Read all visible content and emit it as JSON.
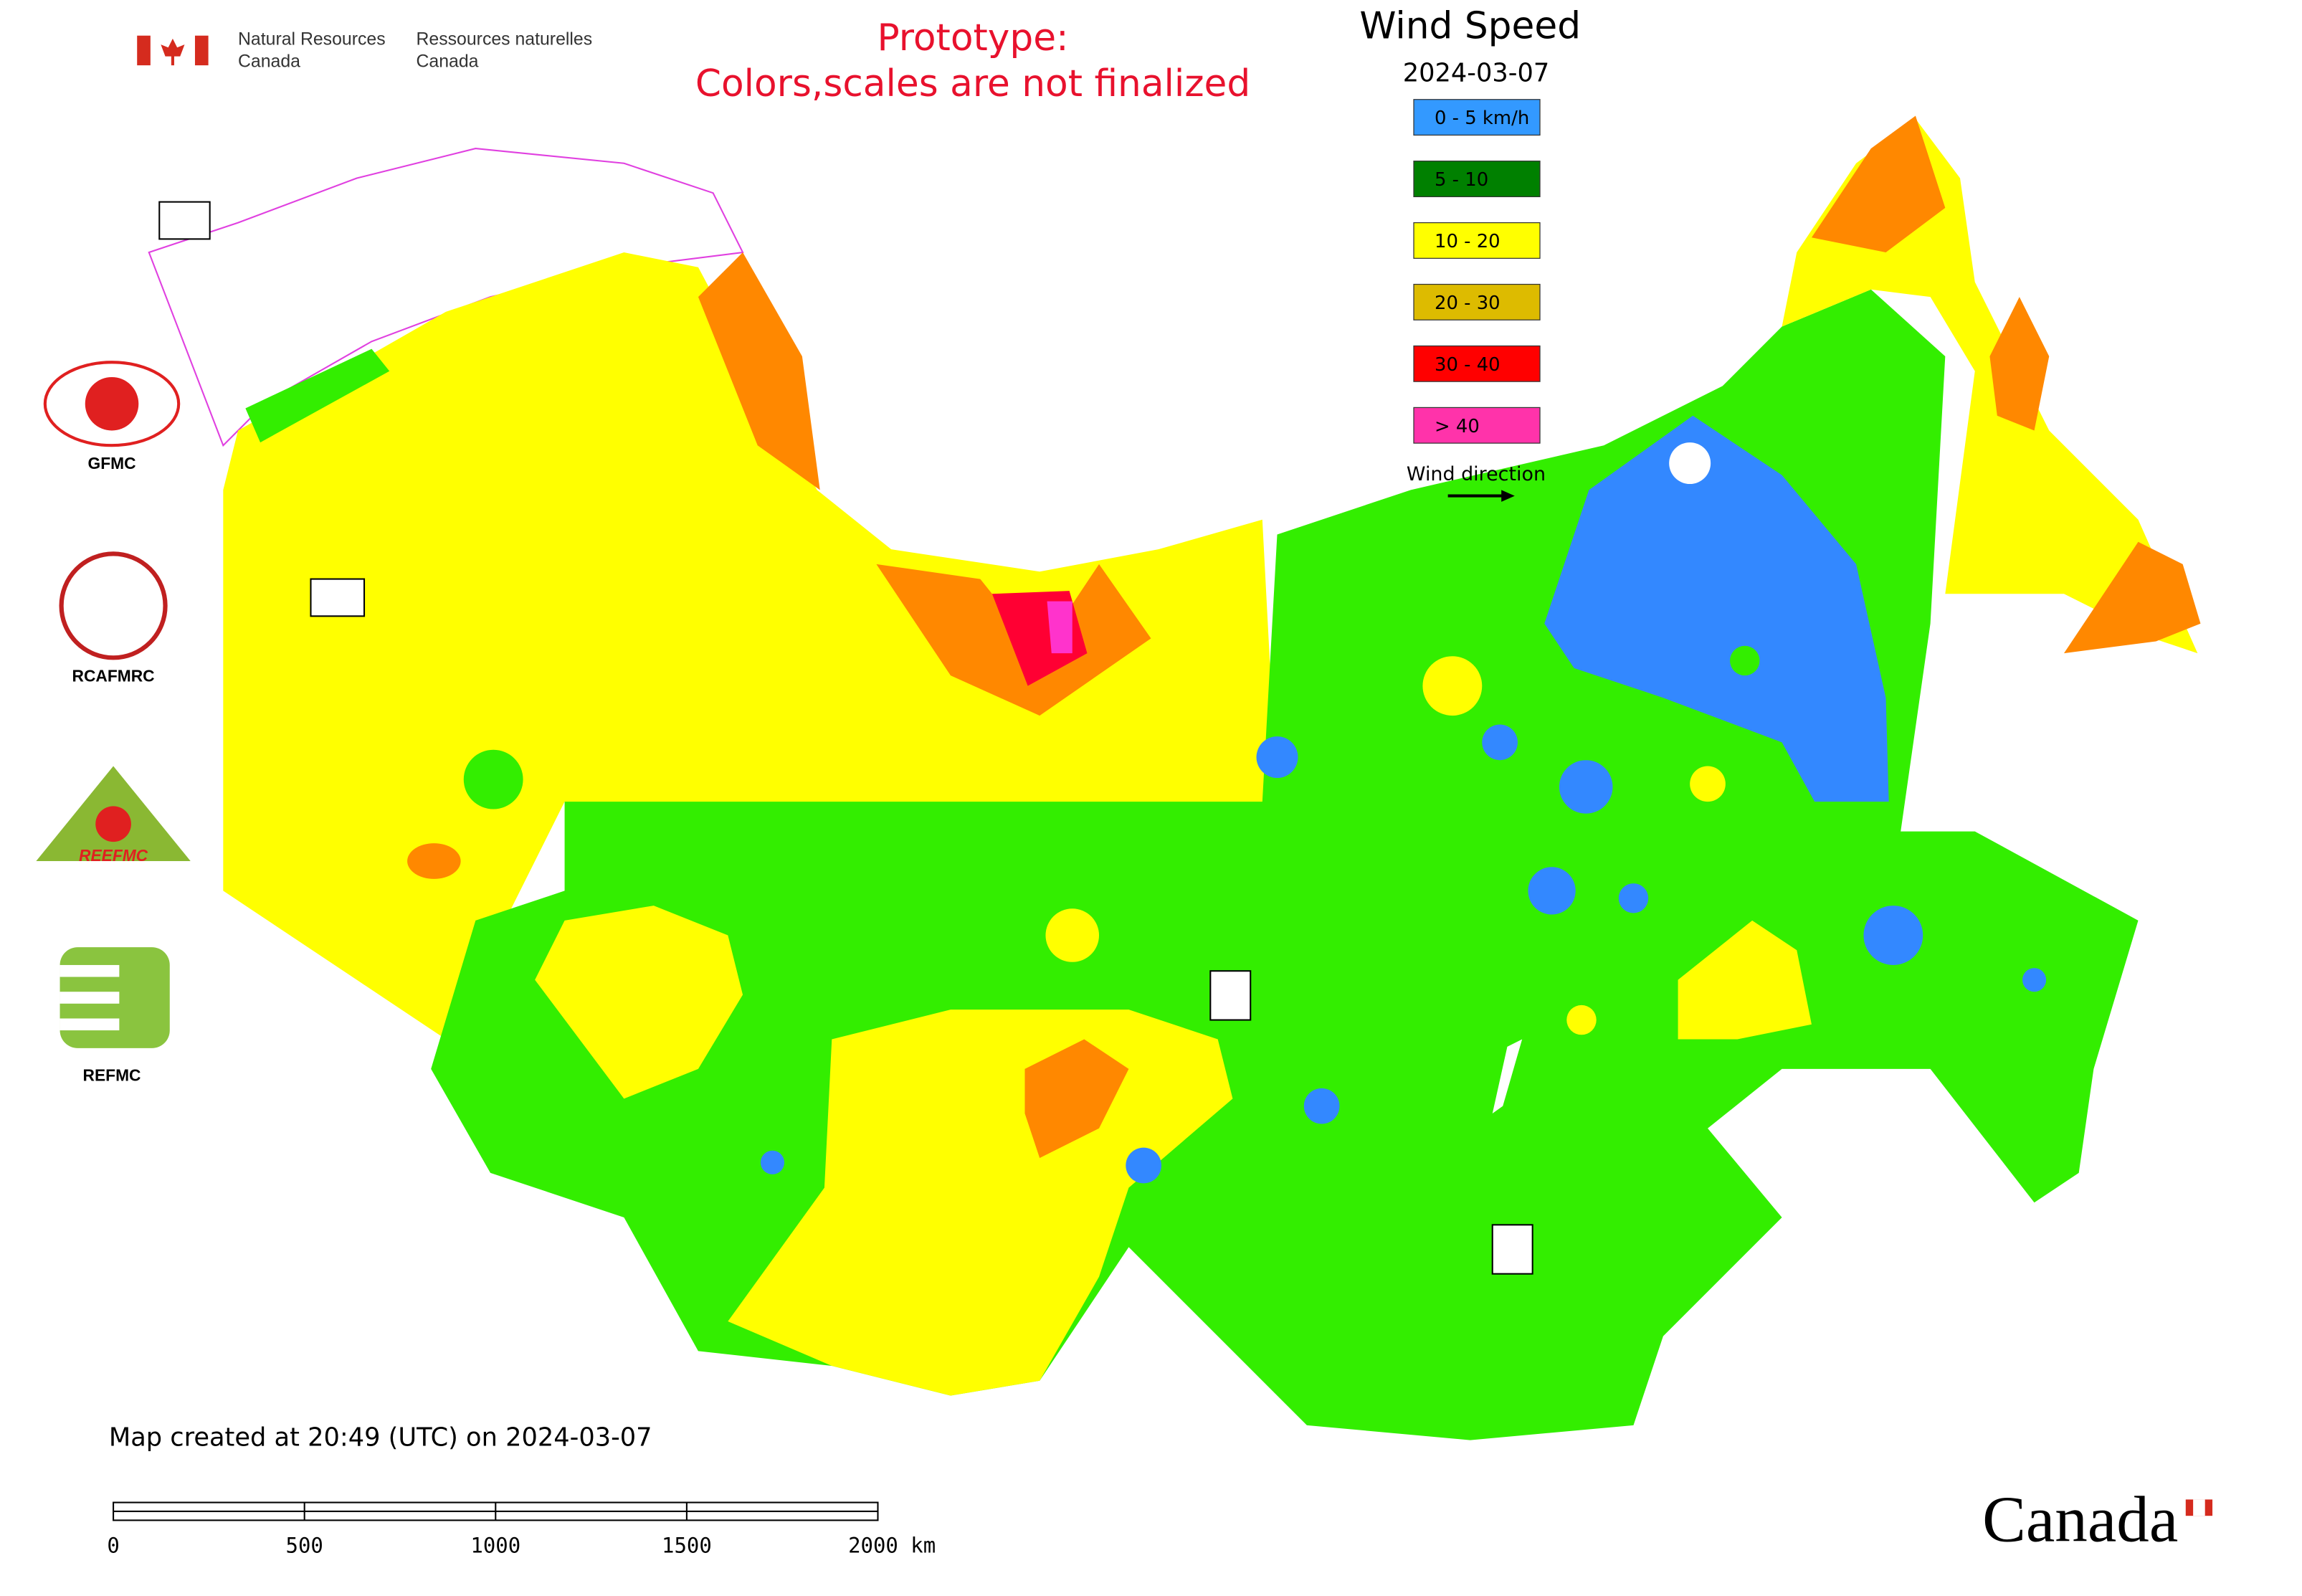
{
  "agency": {
    "en_line1": "Natural Resources",
    "en_line2": "Canada",
    "fr_line1": "Ressources naturelles",
    "fr_line2": "Canada"
  },
  "notice": {
    "line1": "Prototype:",
    "line2": "Colors,scales are not finalized"
  },
  "legend": {
    "title": "Wind Speed",
    "date": "2024-03-07",
    "items": [
      {
        "label": "0 - 5 km/h",
        "color": "#3399ff"
      },
      {
        "label": "5 - 10",
        "color": "#008000"
      },
      {
        "label": "10 - 20",
        "color": "#ffff00"
      },
      {
        "label": "20 - 30",
        "color": "#ddbb00"
      },
      {
        "label": "30 - 40",
        "color": "#ff0000"
      },
      {
        "label": "> 40",
        "color": "#ff33aa"
      }
    ],
    "direction_label": "Wind direction"
  },
  "logos": {
    "gfmc": "GFMC",
    "rcafmrc": "RCAFMRC",
    "reefmc_mark": "REEFMC",
    "refmc": "REFMC"
  },
  "footer": {
    "created": "Map created at 20:49 (UTC) on 2024-03-07",
    "scale_labels": [
      "0",
      "500",
      "1000",
      "1500",
      "2000 km"
    ],
    "wordmark": "Canada"
  }
}
